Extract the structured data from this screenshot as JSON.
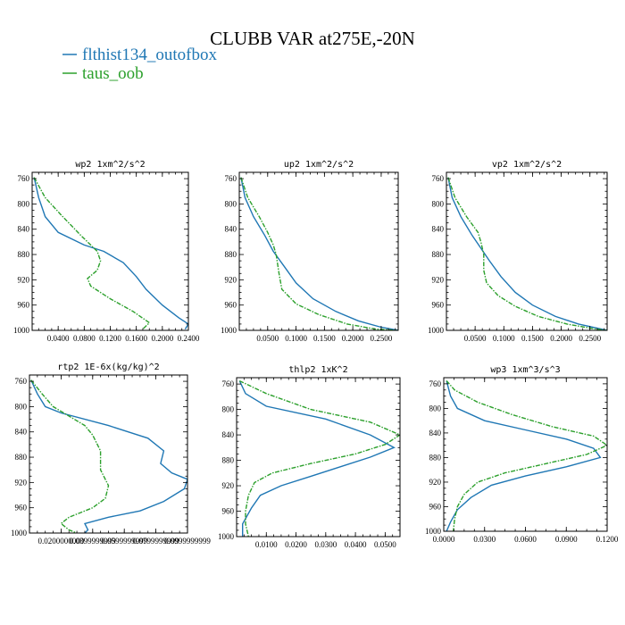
{
  "figure": {
    "title": "CLUBB VAR at275E,-20N",
    "colors": {
      "series_1": "#1f77b4",
      "series_2": "#2ca02c"
    }
  },
  "chart_data": [
    {
      "type": "line",
      "title": "wp2  1xm^2/s^2",
      "xlim": [
        0,
        0.24
      ],
      "ylim": [
        1000,
        750
      ],
      "xticks": [
        0.04,
        0.08,
        0.12,
        0.16,
        0.2,
        0.24
      ],
      "xtick_labels": [
        "0.0400",
        "0.0800",
        "0.1200",
        "0.1600",
        "0.2000",
        "0.2400"
      ],
      "yticks": [
        760,
        800,
        840,
        880,
        920,
        960,
        1000
      ],
      "ytick_labels": [
        "760",
        "800",
        "840",
        "880",
        "920",
        "960",
        "1000"
      ],
      "series": [
        {
          "name": "flthist134_outofbox",
          "points": [
            [
              0.003,
              758
            ],
            [
              0.01,
              790
            ],
            [
              0.02,
              820
            ],
            [
              0.04,
              845
            ],
            [
              0.08,
              865
            ],
            [
              0.11,
              875
            ],
            [
              0.14,
              893
            ],
            [
              0.16,
              915
            ],
            [
              0.175,
              935
            ],
            [
              0.2,
              960
            ],
            [
              0.225,
              980
            ],
            [
              0.24,
              990
            ],
            [
              0.235,
              998
            ]
          ]
        },
        {
          "name": "taus_oob",
          "points": [
            [
              0.003,
              758
            ],
            [
              0.02,
              790
            ],
            [
              0.045,
              818
            ],
            [
              0.075,
              850
            ],
            [
              0.1,
              875
            ],
            [
              0.105,
              890
            ],
            [
              0.1,
              905
            ],
            [
              0.085,
              918
            ],
            [
              0.09,
              930
            ],
            [
              0.12,
              950
            ],
            [
              0.155,
              970
            ],
            [
              0.18,
              988
            ],
            [
              0.17,
              998
            ]
          ]
        }
      ]
    },
    {
      "type": "line",
      "title": "up2  1xm^2/s^2",
      "xlim": [
        0,
        0.28
      ],
      "ylim": [
        1000,
        750
      ],
      "xticks": [
        0.05,
        0.1,
        0.15,
        0.2,
        0.25
      ],
      "xtick_labels": [
        "0.0500",
        "0.1000",
        "0.1500",
        "0.2000",
        "0.2500"
      ],
      "yticks": [
        760,
        800,
        840,
        880,
        920,
        960,
        1000
      ],
      "ytick_labels": [
        "760",
        "800",
        "840",
        "880",
        "920",
        "960",
        "1000"
      ],
      "series": [
        {
          "name": "flthist134_outofbox",
          "points": [
            [
              0.003,
              758
            ],
            [
              0.01,
              790
            ],
            [
              0.025,
              820
            ],
            [
              0.045,
              850
            ],
            [
              0.06,
              875
            ],
            [
              0.08,
              900
            ],
            [
              0.1,
              925
            ],
            [
              0.13,
              950
            ],
            [
              0.17,
              970
            ],
            [
              0.21,
              985
            ],
            [
              0.25,
              995
            ],
            [
              0.28,
              1000
            ]
          ]
        },
        {
          "name": "taus_oob",
          "points": [
            [
              0.003,
              758
            ],
            [
              0.015,
              790
            ],
            [
              0.035,
              820
            ],
            [
              0.05,
              845
            ],
            [
              0.06,
              865
            ],
            [
              0.065,
              880
            ],
            [
              0.07,
              910
            ],
            [
              0.075,
              935
            ],
            [
              0.1,
              958
            ],
            [
              0.14,
              975
            ],
            [
              0.19,
              990
            ],
            [
              0.24,
              998
            ],
            [
              0.28,
              1000
            ]
          ]
        }
      ]
    },
    {
      "type": "line",
      "title": "vp2  1xm^2/s^2",
      "xlim": [
        0,
        0.28
      ],
      "ylim": [
        1000,
        750
      ],
      "xticks": [
        0.05,
        0.1,
        0.15,
        0.2,
        0.25
      ],
      "xtick_labels": [
        "0.0500",
        "0.1000",
        "0.1500",
        "0.2000",
        "0.2500"
      ],
      "yticks": [
        760,
        800,
        840,
        880,
        920,
        960,
        1000
      ],
      "ytick_labels": [
        "760",
        "800",
        "840",
        "880",
        "920",
        "960",
        "1000"
      ],
      "series": [
        {
          "name": "flthist134_outofbox",
          "points": [
            [
              0.003,
              758
            ],
            [
              0.01,
              790
            ],
            [
              0.025,
              820
            ],
            [
              0.045,
              850
            ],
            [
              0.06,
              870
            ],
            [
              0.075,
              890
            ],
            [
              0.095,
              915
            ],
            [
              0.12,
              940
            ],
            [
              0.15,
              960
            ],
            [
              0.19,
              978
            ],
            [
              0.23,
              990
            ],
            [
              0.27,
              998
            ],
            [
              0.28,
              1000
            ]
          ]
        },
        {
          "name": "taus_oob",
          "points": [
            [
              0.003,
              758
            ],
            [
              0.015,
              790
            ],
            [
              0.035,
              820
            ],
            [
              0.055,
              845
            ],
            [
              0.06,
              860
            ],
            [
              0.065,
              880
            ],
            [
              0.065,
              905
            ],
            [
              0.07,
              925
            ],
            [
              0.09,
              945
            ],
            [
              0.12,
              962
            ],
            [
              0.16,
              978
            ],
            [
              0.21,
              990
            ],
            [
              0.26,
              998
            ],
            [
              0.28,
              1000
            ]
          ]
        }
      ]
    },
    {
      "type": "line",
      "title": "rtp2  1E-6x(kg/kg)^2",
      "xlim": [
        0,
        0.1
      ],
      "ylim": [
        1000,
        750
      ],
      "xticks": [
        0.02,
        0.04,
        0.06,
        0.08,
        0.1
      ],
      "xtick_labels": [
        "0.0200000000",
        "0.0399999999",
        "0.0599999999",
        "0.0799999999",
        "0.0999999999"
      ],
      "yticks": [
        760,
        800,
        840,
        880,
        920,
        960,
        1000
      ],
      "ytick_labels": [
        "760",
        "800",
        "840",
        "880",
        "920",
        "960",
        "1000"
      ],
      "series": [
        {
          "name": "flthist134_outofbox",
          "points": [
            [
              0.001,
              758
            ],
            [
              0.005,
              780
            ],
            [
              0.01,
              800
            ],
            [
              0.02,
              810
            ],
            [
              0.05,
              830
            ],
            [
              0.075,
              850
            ],
            [
              0.085,
              870
            ],
            [
              0.083,
              890
            ],
            [
              0.09,
              905
            ],
            [
              0.1,
              915
            ],
            [
              0.098,
              930
            ],
            [
              0.085,
              950
            ],
            [
              0.07,
              965
            ],
            [
              0.05,
              975
            ],
            [
              0.035,
              985
            ],
            [
              0.037,
              995
            ],
            [
              0.035,
              1000
            ]
          ]
        },
        {
          "name": "taus_oob",
          "points": [
            [
              0.001,
              758
            ],
            [
              0.008,
              780
            ],
            [
              0.015,
              800
            ],
            [
              0.025,
              815
            ],
            [
              0.035,
              830
            ],
            [
              0.04,
              845
            ],
            [
              0.045,
              870
            ],
            [
              0.045,
              900
            ],
            [
              0.05,
              925
            ],
            [
              0.048,
              945
            ],
            [
              0.04,
              960
            ],
            [
              0.025,
              975
            ],
            [
              0.02,
              985
            ],
            [
              0.025,
              995
            ],
            [
              0.03,
              1000
            ]
          ]
        }
      ]
    },
    {
      "type": "line",
      "title": "thlp2  1xK^2",
      "xlim": [
        0,
        0.055
      ],
      "ylim": [
        1000,
        750
      ],
      "xticks": [
        0.01,
        0.02,
        0.03,
        0.04,
        0.05
      ],
      "xtick_labels": [
        "0.0100",
        "0.0200",
        "0.0300",
        "0.0400",
        "0.0500"
      ],
      "yticks": [
        760,
        800,
        840,
        880,
        920,
        960,
        1000
      ],
      "ytick_labels": [
        "760",
        "800",
        "840",
        "880",
        "920",
        "960",
        "1000"
      ],
      "series": [
        {
          "name": "flthist134_outofbox",
          "points": [
            [
              0.001,
              755
            ],
            [
              0.003,
              775
            ],
            [
              0.01,
              795
            ],
            [
              0.03,
              815
            ],
            [
              0.045,
              840
            ],
            [
              0.053,
              860
            ],
            [
              0.045,
              875
            ],
            [
              0.035,
              890
            ],
            [
              0.025,
              905
            ],
            [
              0.015,
              920
            ],
            [
              0.008,
              935
            ],
            [
              0.005,
              955
            ],
            [
              0.002,
              980
            ],
            [
              0.002,
              1000
            ]
          ]
        },
        {
          "name": "taus_oob",
          "points": [
            [
              0.001,
              755
            ],
            [
              0.01,
              775
            ],
            [
              0.025,
              800
            ],
            [
              0.045,
              820
            ],
            [
              0.055,
              840
            ],
            [
              0.05,
              855
            ],
            [
              0.04,
              870
            ],
            [
              0.025,
              885
            ],
            [
              0.012,
              900
            ],
            [
              0.006,
              915
            ],
            [
              0.004,
              935
            ],
            [
              0.003,
              960
            ],
            [
              0.003,
              980
            ],
            [
              0.004,
              1000
            ]
          ]
        }
      ]
    },
    {
      "type": "line",
      "title": "wp3  1xm^3/s^3",
      "xlim": [
        0,
        0.12
      ],
      "ylim": [
        1000,
        750
      ],
      "xticks": [
        0,
        0.03,
        0.06,
        0.09,
        0.12
      ],
      "xtick_labels": [
        "0.0000",
        "0.0300",
        "0.0600",
        "0.0900",
        "0.1200"
      ],
      "yticks": [
        760,
        800,
        840,
        880,
        920,
        960,
        1000
      ],
      "ytick_labels": [
        "760",
        "800",
        "840",
        "880",
        "920",
        "960",
        "1000"
      ],
      "series": [
        {
          "name": "flthist134_outofbox",
          "points": [
            [
              0.002,
              755
            ],
            [
              0.005,
              780
            ],
            [
              0.01,
              800
            ],
            [
              0.03,
              820
            ],
            [
              0.06,
              835
            ],
            [
              0.09,
              850
            ],
            [
              0.11,
              865
            ],
            [
              0.115,
              880
            ],
            [
              0.09,
              895
            ],
            [
              0.06,
              910
            ],
            [
              0.035,
              925
            ],
            [
              0.02,
              945
            ],
            [
              0.01,
              965
            ],
            [
              0.005,
              985
            ],
            [
              0.002,
              1000
            ]
          ]
        },
        {
          "name": "taus_oob",
          "points": [
            [
              0.002,
              755
            ],
            [
              0.008,
              770
            ],
            [
              0.025,
              790
            ],
            [
              0.05,
              810
            ],
            [
              0.08,
              830
            ],
            [
              0.11,
              845
            ],
            [
              0.12,
              860
            ],
            [
              0.105,
              875
            ],
            [
              0.075,
              890
            ],
            [
              0.045,
              905
            ],
            [
              0.025,
              920
            ],
            [
              0.015,
              940
            ],
            [
              0.01,
              960
            ],
            [
              0.008,
              980
            ],
            [
              0.007,
              1000
            ]
          ]
        }
      ]
    }
  ]
}
